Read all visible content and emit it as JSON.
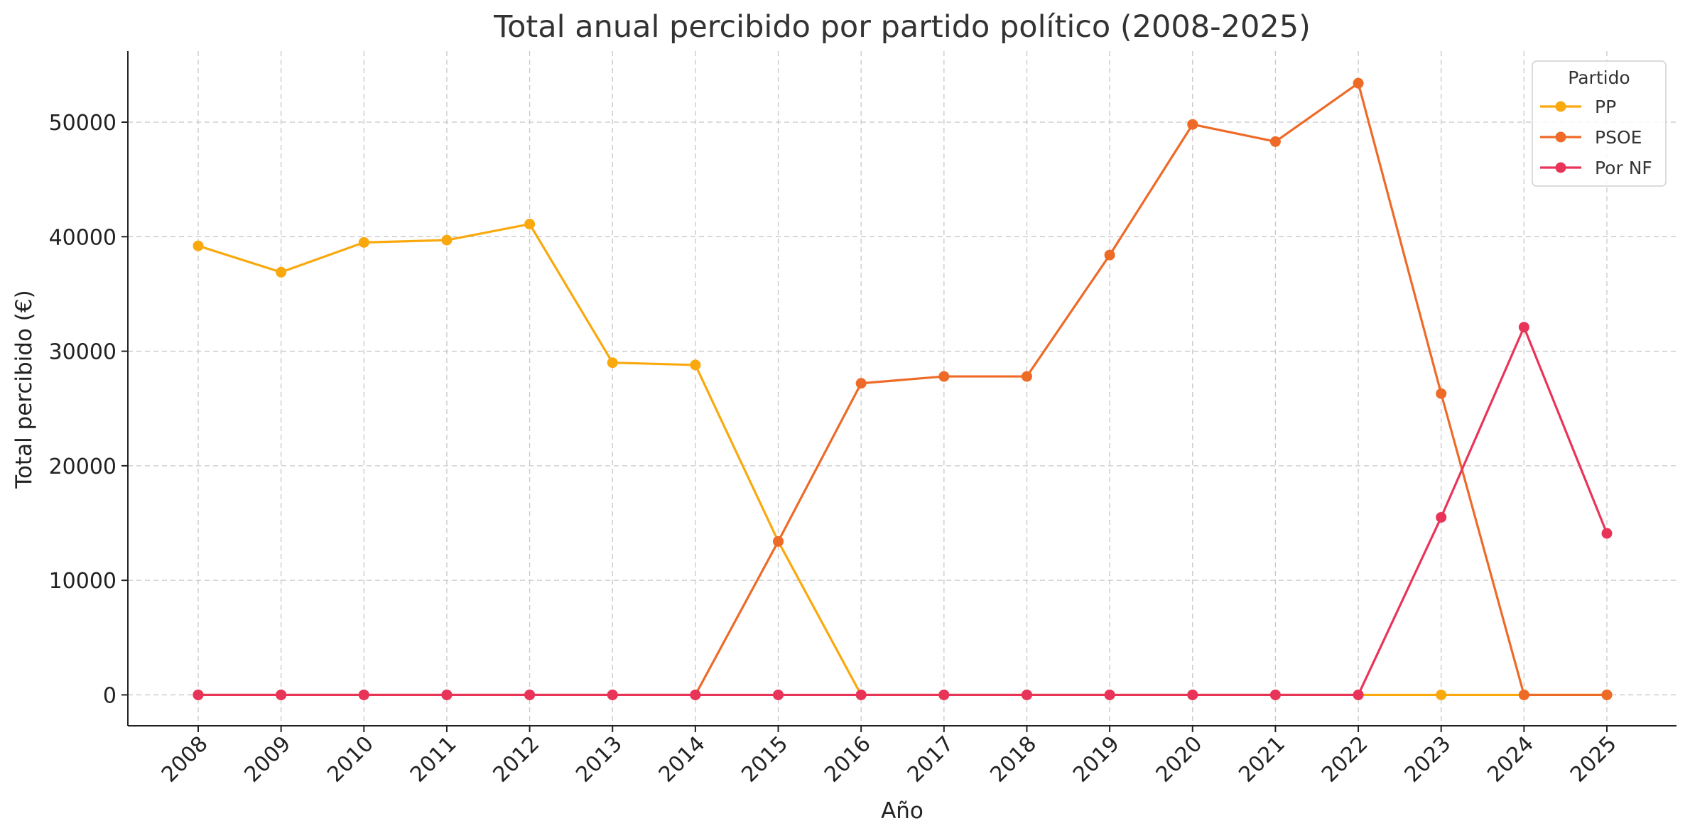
{
  "chart_data": {
    "type": "line",
    "title": "Total anual percibido por partido político (2008-2025)",
    "xlabel": "Año",
    "ylabel": "Total percibido (€)",
    "categories": [
      "2008",
      "2009",
      "2010",
      "2011",
      "2012",
      "2013",
      "2014",
      "2015",
      "2016",
      "2017",
      "2018",
      "2019",
      "2020",
      "2021",
      "2022",
      "2023",
      "2024",
      "2025"
    ],
    "ylim": [
      -2700,
      56200
    ],
    "yticks": [
      0,
      10000,
      20000,
      30000,
      40000,
      50000
    ],
    "grid": true,
    "legend": {
      "title": "Partido",
      "placement": "top-right"
    },
    "series": [
      {
        "name": "PP",
        "color": "#F9A90E",
        "values": [
          39200,
          36900,
          39500,
          39700,
          41100,
          29000,
          28800,
          13400,
          0,
          0,
          0,
          0,
          0,
          0,
          0,
          0,
          0,
          0
        ]
      },
      {
        "name": "PSOE",
        "color": "#EE6A27",
        "values": [
          0,
          0,
          0,
          0,
          0,
          0,
          0,
          13400,
          27200,
          27800,
          27800,
          38400,
          49800,
          48300,
          53400,
          26300,
          0,
          0
        ]
      },
      {
        "name": "Por NF",
        "color": "#E9345A",
        "values": [
          0,
          0,
          0,
          0,
          0,
          0,
          0,
          0,
          0,
          0,
          0,
          0,
          0,
          0,
          0,
          15500,
          32100,
          14100
        ]
      }
    ]
  }
}
